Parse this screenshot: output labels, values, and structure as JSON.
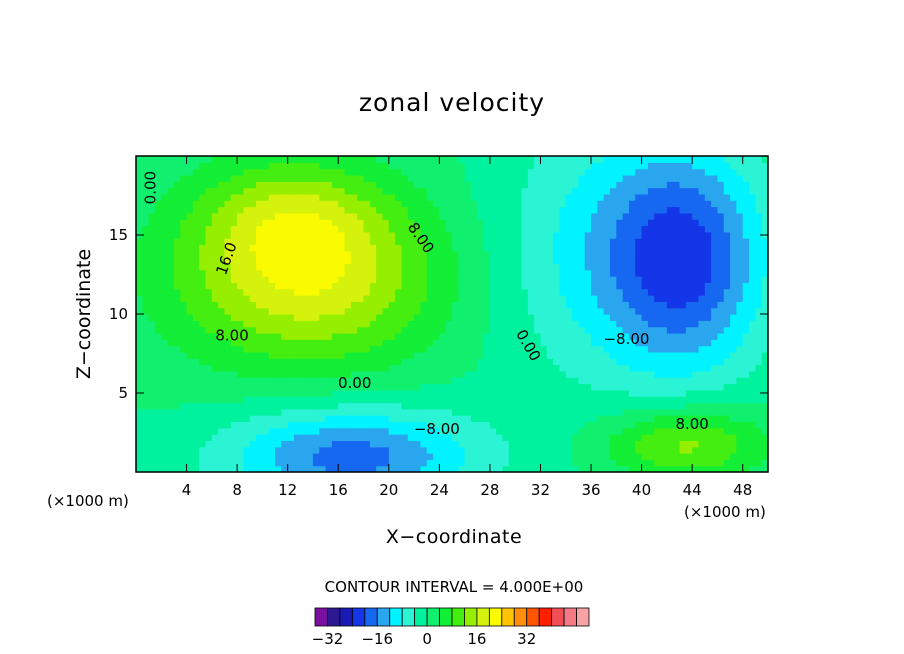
{
  "chart_data": {
    "type": "heatmap",
    "subtype": "filled-contour",
    "title": "zonal velocity",
    "xlabel": "X−coordinate",
    "ylabel": "Z−coordinate",
    "x_unit_left": "(×1000 m)",
    "x_unit_right": "(×1000 m)",
    "xlim": [
      0,
      50
    ],
    "ylim": [
      0,
      20
    ],
    "x_ticks": [
      4,
      8,
      12,
      16,
      20,
      24,
      28,
      32,
      36,
      40,
      44,
      48
    ],
    "y_ticks": [
      5,
      10,
      15
    ],
    "contour_interval_text": "CONTOUR INTERVAL = 4.000E+00",
    "contour_interval": 4,
    "contour_labels": [
      {
        "text": "0.00",
        "x": 1.2,
        "y": 18.0,
        "rotation": -90
      },
      {
        "text": "16.0",
        "x": 7.2,
        "y": 13.5,
        "rotation": -70
      },
      {
        "text": "8.00",
        "x": 22.5,
        "y": 14.8,
        "rotation": 55
      },
      {
        "text": "8.00",
        "x": 7.6,
        "y": 8.6,
        "rotation": 0
      },
      {
        "text": "0.00",
        "x": 17.3,
        "y": 5.6,
        "rotation": 0
      },
      {
        "text": "0.00",
        "x": 31.0,
        "y": 8.0,
        "rotation": 60
      },
      {
        "text": "−8.00",
        "x": 38.8,
        "y": 8.4,
        "rotation": 0
      },
      {
        "text": "−8.00",
        "x": 23.8,
        "y": 2.7,
        "rotation": 0
      },
      {
        "text": "8.00",
        "x": 44.0,
        "y": 3.0,
        "rotation": 0
      }
    ],
    "colorbar": {
      "colors": [
        "#7a0fa0",
        "#2c1890",
        "#1a1ab4",
        "#1535e8",
        "#1668f0",
        "#2aa6ee",
        "#00f3ff",
        "#2af4d4",
        "#00f29e",
        "#10f06e",
        "#13ee36",
        "#44ee10",
        "#96ee00",
        "#d5f20c",
        "#fbfb00",
        "#ffc400",
        "#ff8f0a",
        "#ff5500",
        "#ff2000",
        "#f24e56",
        "#f57a88",
        "#f7a3a5"
      ],
      "tick_labels": [
        "−32",
        "−16",
        "0",
        "16",
        "32"
      ],
      "tick_values": [
        -32,
        -16,
        0,
        16,
        32
      ]
    },
    "field": {
      "background_level": 0,
      "features": [
        {
          "sign": "positive",
          "peak": 20,
          "center_x": 13.5,
          "center_z": 12.5,
          "sx": 7.5,
          "sz": 4.0
        },
        {
          "sign": "positive",
          "peak": 8,
          "center_x": 12.0,
          "center_z": 16.5,
          "sx": 5.0,
          "sz": 2.5
        },
        {
          "sign": "negative",
          "peak": -20,
          "center_x": 43.5,
          "center_z": 13.5,
          "sx": 4.5,
          "sz": 5.0
        },
        {
          "sign": "negative",
          "peak": -8,
          "center_x": 36.0,
          "center_z": 14.0,
          "sx": 6.0,
          "sz": 6.0
        },
        {
          "sign": "negative",
          "peak": -18,
          "center_x": 17.0,
          "center_z": 1.0,
          "sx": 7.0,
          "sz": 2.2
        },
        {
          "sign": "positive",
          "peak": 14,
          "center_x": 43.5,
          "center_z": 1.8,
          "sx": 4.5,
          "sz": 1.6
        }
      ]
    }
  }
}
